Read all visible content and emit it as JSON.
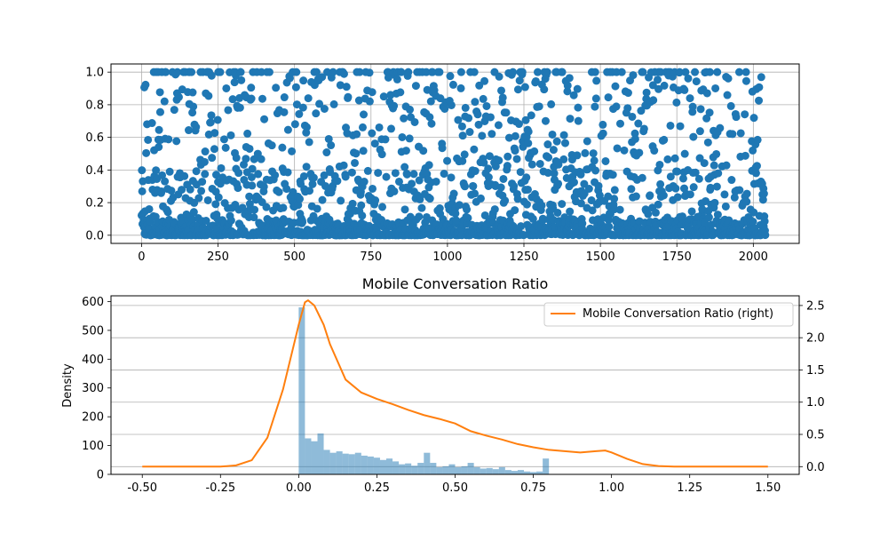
{
  "chart_data": [
    {
      "type": "scatter",
      "title": "",
      "xlabel": "",
      "ylabel": "",
      "xlim": [
        -100,
        2150
      ],
      "ylim": [
        -0.05,
        1.05
      ],
      "xticks": [
        0,
        250,
        500,
        750,
        1000,
        1250,
        1500,
        1750,
        2000
      ],
      "yticks": [
        0.0,
        0.2,
        0.4,
        0.6,
        0.8,
        1.0
      ],
      "grid": true,
      "n_points": 2040,
      "color": "#1f77b4",
      "point_distribution": {
        "fraction_near_zero": 0.45,
        "fraction_at_one": 0.05,
        "fraction_spread_0_to_0_4": 0.3,
        "fraction_spread_0_4_to_1": 0.2
      }
    },
    {
      "type": "histogram",
      "title": "Mobile Conversation Ratio",
      "xlabel": "",
      "ylabel": "Density",
      "ylabel_right": "",
      "xlim": [
        -0.6,
        1.6
      ],
      "ylim_left": [
        0,
        620
      ],
      "ylim_right": [
        -0.12,
        2.65
      ],
      "xticks": [
        -0.5,
        -0.25,
        0.0,
        0.25,
        0.5,
        0.75,
        1.0,
        1.25,
        1.5
      ],
      "yticks_left": [
        0,
        100,
        200,
        300,
        400,
        500,
        600
      ],
      "yticks_right": [
        0.0,
        0.5,
        1.0,
        1.5,
        2.0,
        2.5
      ],
      "grid": "right-axis horizontal",
      "legend_position": "top-right",
      "histogram": {
        "color": "#1f77b4",
        "bin_width": 0.02,
        "bin_start": 0.0,
        "counts": [
          580,
          125,
          115,
          142,
          85,
          75,
          80,
          72,
          70,
          75,
          65,
          62,
          58,
          50,
          55,
          45,
          35,
          38,
          30,
          40,
          75,
          40,
          25,
          28,
          35,
          25,
          28,
          40,
          25,
          20,
          22,
          18,
          25,
          15,
          12,
          15,
          10,
          8,
          10,
          55
        ]
      },
      "kde_series": {
        "name": "Mobile Conversation Ratio (right)",
        "color": "#ff7f0e",
        "x": [
          -0.5,
          -0.25,
          -0.2,
          -0.15,
          -0.1,
          -0.05,
          0.0,
          0.02,
          0.03,
          0.05,
          0.08,
          0.1,
          0.15,
          0.2,
          0.25,
          0.3,
          0.35,
          0.4,
          0.45,
          0.5,
          0.55,
          0.6,
          0.65,
          0.7,
          0.75,
          0.8,
          0.85,
          0.9,
          0.95,
          0.98,
          1.0,
          1.05,
          1.1,
          1.15,
          1.2,
          1.25,
          1.5
        ],
        "y": [
          0.0,
          0.0,
          0.02,
          0.1,
          0.45,
          1.2,
          2.2,
          2.55,
          2.58,
          2.5,
          2.2,
          1.9,
          1.35,
          1.15,
          1.05,
          0.97,
          0.88,
          0.8,
          0.74,
          0.67,
          0.55,
          0.48,
          0.42,
          0.35,
          0.3,
          0.26,
          0.24,
          0.22,
          0.24,
          0.25,
          0.22,
          0.12,
          0.04,
          0.01,
          0.0,
          0.0,
          0.0
        ]
      }
    }
  ]
}
